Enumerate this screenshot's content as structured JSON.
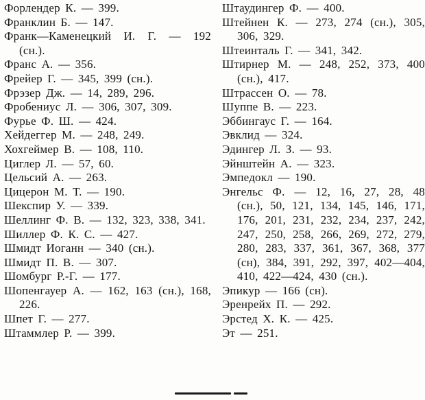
{
  "page": {
    "kind": "book-name-index",
    "language": "ru",
    "background_color": "#fdfdfc",
    "text_color": "#161616"
  },
  "index": {
    "left_column": [
      "Форлендер К. — 399.",
      "Франклин Б. — 147.",
      "Франк—Каменецкий И. Г. — 192 (сн.).",
      "Франс А. — 356.",
      "Фрейер Г. — 345, 399 (сн.).",
      "Фрэзер Дж. — 14, 289, 296.",
      "Фробениус Л. — 306, 307, 309.",
      "Фурье Ф. Ш. — 424.",
      "Хейдеггер М. — 248, 249.",
      "Хохгеймер В. — 108, 110.",
      "Циглер Л. — 57, 60.",
      "Цельсий А. — 263.",
      "Цицерон М. Т. — 190.",
      "Шекспир У. — 339.",
      "Шеллинг Ф. В. — 132, 323, 338, 341.",
      "Шиллер Ф. К. С. — 427.",
      "Шмидт Иоганн — 340 (сн.).",
      "Шмидт П. В. — 307.",
      "Шомбург Р.-Г. — 177.",
      "Шопенгауер А. — 162, 163 (сн.), 168, 226.",
      "Шпет Г. — 277.",
      "Штаммлер Р. — 399."
    ],
    "right_column": [
      "Штаудингер Ф. — 400.",
      "Штейнен К. — 273, 274 (сн.), 305, 306, 329.",
      "Штеинталь Г. — 341, 342.",
      "Штирнер М. — 248, 252, 373, 400 (сн.), 417.",
      "Штрассен О. — 78.",
      "Шуппе В. — 223.",
      "Эббингаус Г. — 164.",
      "Эвклид — 324.",
      "Эдингер Л. З. — 93.",
      "Эйнштейн А. — 323.",
      "Эмпедокл — 190.",
      "Энгельс Ф. — 12, 16, 27, 28, 48 (сн.), 50, 121, 134, 145, 146, 171, 176, 201, 231, 232, 234, 237, 242, 247, 250, 258, 266, 269, 272, 279, 280, 283, 337, 361, 367, 368, 377 (сн), 384, 391, 292, 397, 402—404, 410, 422—424, 430 (сн.).",
      "Эпикур — 166 (сн).",
      "Эренрейх П. — 292.",
      "Эрстед Х. К. — 425.",
      "Эт — 251."
    ]
  }
}
